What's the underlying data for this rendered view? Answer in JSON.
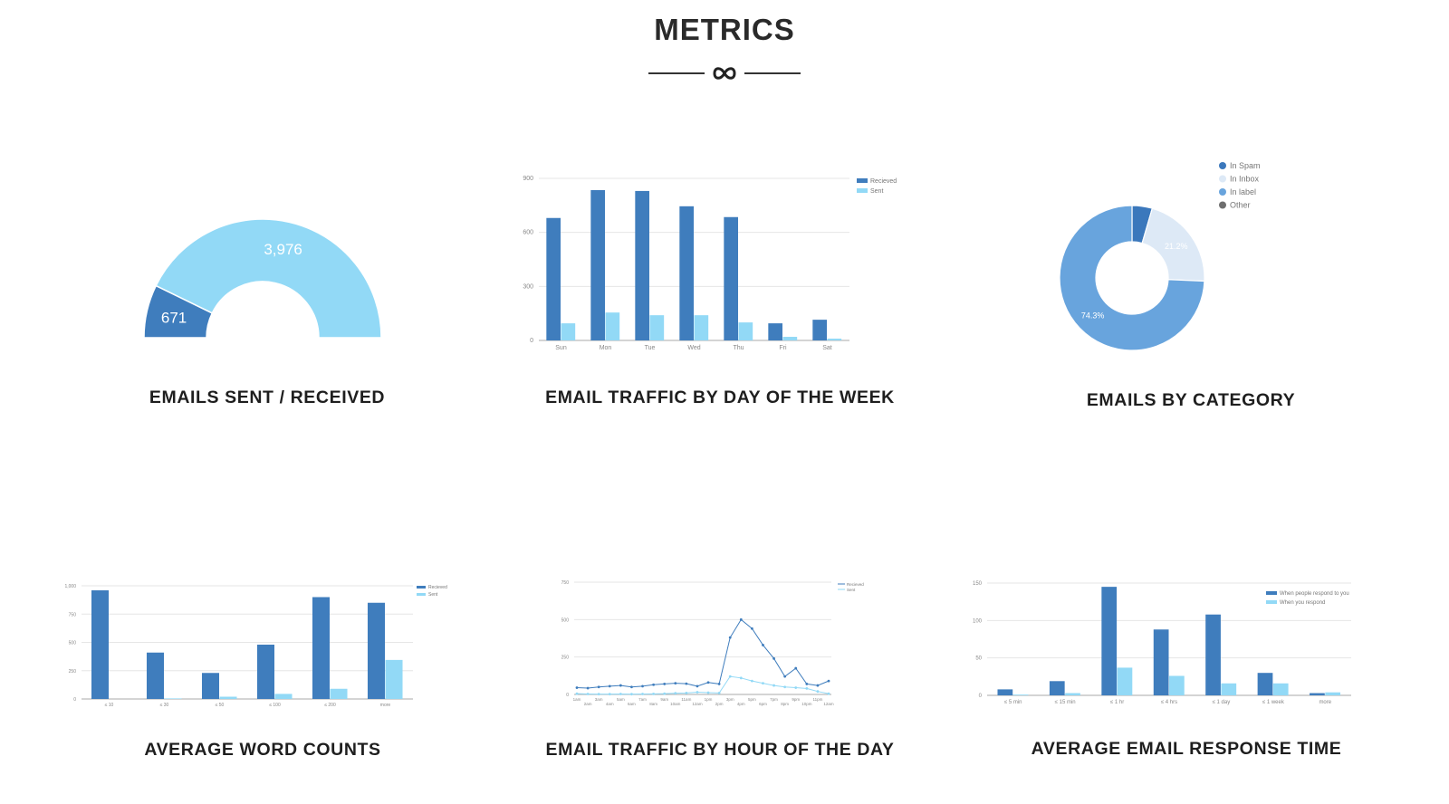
{
  "header": {
    "title": "METRICS",
    "divider_icon": "infinity-icon"
  },
  "colors": {
    "received": "#3F7DBD",
    "sent": "#92D9F6",
    "category_spam": "#3B78BC",
    "category_inbox": "#DDE9F6",
    "category_label": "#68A4DD",
    "category_other": "#6E6E6E",
    "grid": "#E6E6E6"
  },
  "chart_data": [
    {
      "id": "sent-received",
      "type": "pie",
      "title": "EMAILS SENT / RECEIVED",
      "style": "half-donut",
      "slices": [
        {
          "label": "671",
          "value": 671
        },
        {
          "label": "3,976",
          "value": 3976
        }
      ]
    },
    {
      "id": "day-of-week",
      "type": "bar",
      "title": "EMAIL TRAFFIC BY DAY OF THE WEEK",
      "categories": [
        "Sun",
        "Mon",
        "Tue",
        "Wed",
        "Thu",
        "Fri",
        "Sat"
      ],
      "series": [
        {
          "name": "Recieved",
          "values": [
            680,
            835,
            830,
            745,
            685,
            95,
            115
          ]
        },
        {
          "name": "Sent",
          "values": [
            95,
            155,
            140,
            140,
            100,
            20,
            10
          ]
        }
      ],
      "ylim": [
        0,
        900
      ],
      "yticks": [
        "0",
        "300",
        "600",
        "900"
      ],
      "grid": true,
      "legend": "top-right"
    },
    {
      "id": "category",
      "type": "pie",
      "title": "EMAILS BY CATEGORY",
      "style": "donut",
      "legend": "top-right",
      "slices": [
        {
          "name": "In Spam",
          "value": 4.5,
          "label": ""
        },
        {
          "name": "In Inbox",
          "value": 21.2,
          "label": "21.2%"
        },
        {
          "name": "In label",
          "value": 74.3,
          "label": "74.3%"
        },
        {
          "name": "Other",
          "value": 0,
          "label": ""
        }
      ]
    },
    {
      "id": "word-counts",
      "type": "bar",
      "title": "AVERAGE WORD COUNTS",
      "categories": [
        "≤ 10",
        "≤ 30",
        "≤ 50",
        "≤ 100",
        "≤ 200",
        "more"
      ],
      "series": [
        {
          "name": "Recieved",
          "values": [
            960,
            410,
            230,
            480,
            900,
            850
          ]
        },
        {
          "name": "Sent",
          "values": [
            0,
            5,
            20,
            45,
            90,
            345
          ]
        }
      ],
      "ylim": [
        0,
        1000
      ],
      "yticks": [
        "0",
        "250",
        "500",
        "750",
        "1,000"
      ],
      "grid": true,
      "legend": "top-right"
    },
    {
      "id": "hour-of-day",
      "type": "line",
      "title": "EMAIL TRAFFIC BY HOUR OF THE DAY",
      "categories": [
        "1am",
        "2am",
        "3am",
        "4am",
        "5am",
        "6am",
        "7am",
        "8am",
        "9am",
        "10am",
        "11am",
        "12am",
        "1pm",
        "2pm",
        "3pm",
        "4pm",
        "5pm",
        "6pm",
        "7pm",
        "8pm",
        "9pm",
        "10pm",
        "11pm",
        "12am"
      ],
      "tick_labels_top": [
        "1am",
        "3am",
        "5am",
        "7am",
        "9am",
        "11am",
        "1pm",
        "3pm",
        "5pm",
        "7pm",
        "9pm",
        "11pm"
      ],
      "tick_labels_bottom": [
        "2am",
        "4am",
        "6am",
        "8am",
        "10am",
        "12am",
        "2pm",
        "4pm",
        "6pm",
        "8pm",
        "10pm",
        "12am"
      ],
      "series": [
        {
          "name": "Recieved",
          "values": [
            45,
            42,
            50,
            55,
            60,
            50,
            55,
            65,
            70,
            75,
            72,
            55,
            80,
            70,
            380,
            500,
            440,
            330,
            240,
            120,
            175,
            70,
            60,
            90
          ]
        },
        {
          "name": "Sent",
          "values": [
            5,
            3,
            2,
            2,
            3,
            2,
            3,
            4,
            5,
            8,
            10,
            15,
            12,
            10,
            120,
            110,
            90,
            75,
            60,
            50,
            45,
            40,
            20,
            5
          ]
        }
      ],
      "ylim": [
        0,
        750
      ],
      "yticks": [
        "0",
        "250",
        "500",
        "750"
      ],
      "grid": true,
      "legend": "top-right"
    },
    {
      "id": "response-time",
      "type": "bar",
      "title": "AVERAGE EMAIL RESPONSE TIME",
      "categories": [
        "≤ 5 min",
        "≤ 15 min",
        "≤ 1 hr",
        "≤ 4 hrs",
        "≤ 1 day",
        "≤ 1 week",
        "more"
      ],
      "series": [
        {
          "name": "When people respond to you",
          "values": [
            8,
            19,
            145,
            88,
            108,
            30,
            3
          ]
        },
        {
          "name": "When you respond",
          "values": [
            1,
            3,
            37,
            26,
            16,
            16,
            4
          ]
        }
      ],
      "ylim": [
        0,
        150
      ],
      "yticks": [
        "0",
        "50",
        "100",
        "150"
      ],
      "grid": true,
      "legend": "top-right"
    }
  ]
}
